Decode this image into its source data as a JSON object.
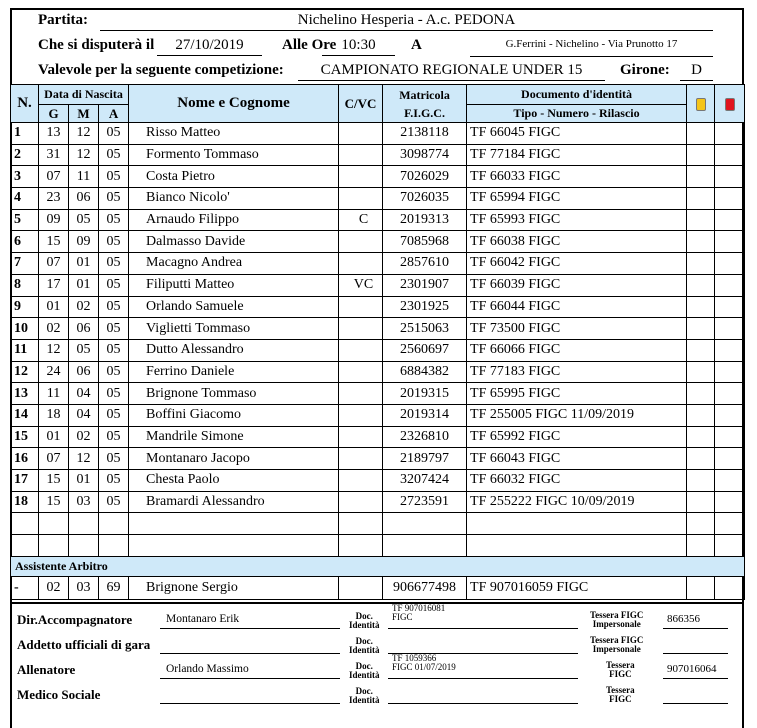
{
  "header": {
    "match_label": "Partita:",
    "match": "Nichelino Hesperia - A.c. PEDONA",
    "date_label": "Che si disputerà il",
    "date": "27/10/2019",
    "time_label": "Alle Ore",
    "time": "10:30",
    "venue_label": "A",
    "venue": "G.Ferrini - Nichelino - Via Prunotto 17",
    "competition_label": "Valevole per la seguente competizione:",
    "competition": "CAMPIONATO REGIONALE UNDER 15",
    "group_label": "Girone:",
    "group": "D"
  },
  "table": {
    "headers": {
      "n": "N.",
      "birth": "Data di Nascita",
      "g": "G",
      "m": "M",
      "a": "A",
      "name": "Nome e Cognome",
      "cvc": "C/VC",
      "mat1": "Matricola",
      "mat2": "F.I.G.C.",
      "doc1": "Documento d'identità",
      "doc2": "Tipo - Numero - Rilascio"
    },
    "card_colors": {
      "yellow": "#f5c518",
      "red": "#e0141e"
    },
    "rows": [
      [
        "1",
        "13",
        "12",
        "05",
        "Risso Matteo",
        "",
        "2138118",
        "TF  66045  FIGC"
      ],
      [
        "2",
        "31",
        "12",
        "05",
        "Formento Tommaso",
        "",
        "3098774",
        "TF  77184  FIGC"
      ],
      [
        "3",
        "07",
        "11",
        "05",
        "Costa Pietro",
        "",
        "7026029",
        "TF  66033  FIGC"
      ],
      [
        "4",
        "23",
        "06",
        "05",
        "Bianco Nicolo'",
        "",
        "7026035",
        "TF  65994  FIGC"
      ],
      [
        "5",
        "09",
        "05",
        "05",
        "Arnaudo Filippo",
        "C",
        "2019313",
        "TF  65993  FIGC"
      ],
      [
        "6",
        "15",
        "09",
        "05",
        "Dalmasso Davide",
        "",
        "7085968",
        "TF  66038  FIGC"
      ],
      [
        "7",
        "07",
        "01",
        "05",
        "Macagno Andrea",
        "",
        "2857610",
        "TF  66042  FIGC"
      ],
      [
        "8",
        "17",
        "01",
        "05",
        "Filiputti Matteo",
        "VC",
        "2301907",
        "TF  66039  FIGC"
      ],
      [
        "9",
        "01",
        "02",
        "05",
        "Orlando Samuele",
        "",
        "2301925",
        "TF  66044  FIGC"
      ],
      [
        "10",
        "02",
        "06",
        "05",
        "Viglietti Tommaso",
        "",
        "2515063",
        "TF  73500  FIGC"
      ],
      [
        "11",
        "12",
        "05",
        "05",
        "Dutto Alessandro",
        "",
        "2560697",
        "TF  66066  FIGC"
      ],
      [
        "12",
        "24",
        "06",
        "05",
        "Ferrino Daniele",
        "",
        "6884382",
        "TF  77183  FIGC"
      ],
      [
        "13",
        "11",
        "04",
        "05",
        "Brignone Tommaso",
        "",
        "2019315",
        "TF  65995  FIGC"
      ],
      [
        "14",
        "18",
        "04",
        "05",
        "Boffini Giacomo",
        "",
        "2019314",
        "TF  255005  FIGC 11/09/2019"
      ],
      [
        "15",
        "01",
        "02",
        "05",
        "Mandrile Simone",
        "",
        "2326810",
        "TF  65992  FIGC"
      ],
      [
        "16",
        "07",
        "12",
        "05",
        "Montanaro Jacopo",
        "",
        "2189797",
        "TF  66043  FIGC"
      ],
      [
        "17",
        "15",
        "01",
        "05",
        "Chesta Paolo",
        "",
        "3207424",
        "TF  66032  FIGC"
      ],
      [
        "18",
        "15",
        "03",
        "05",
        "Bramardi Alessandro",
        "",
        "2723591",
        "TF  255222  FIGC 10/09/2019"
      ],
      [
        "",
        "",
        "",
        "",
        "",
        "",
        "",
        ""
      ],
      [
        "",
        "",
        "",
        "",
        "",
        "",
        "",
        ""
      ]
    ],
    "assistant_title": "Assistente Arbitro",
    "assistant": [
      "-",
      "02",
      "03",
      "69",
      "Brignone Sergio",
      "",
      "906677498",
      "TF  907016059  FIGC"
    ]
  },
  "staff": {
    "doc_label1": "Doc.",
    "doc_label2": "Identità",
    "tessera1": "Tessera FIGC",
    "tessera2": "Impersonale",
    "tessera_short1": "Tessera",
    "tessera_short2": "FIGC",
    "rows": [
      {
        "role": "Dir.Accompagnatore",
        "name": "Montanaro Erik",
        "doc1": "TF  907016081",
        "doc2": "FIGC",
        "tessera": "866356"
      },
      {
        "role": "Addetto ufficiali di gara",
        "name": "",
        "doc1": "",
        "doc2": "",
        "tessera": ""
      },
      {
        "role": "Allenatore",
        "name": "Orlando Massimo",
        "doc1": "TF  1059366",
        "doc2": "FIGC 01/07/2019",
        "tessera": "907016064"
      },
      {
        "role": "Medico Sociale",
        "name": "",
        "doc1": "",
        "doc2": "",
        "tessera": ""
      }
    ]
  }
}
